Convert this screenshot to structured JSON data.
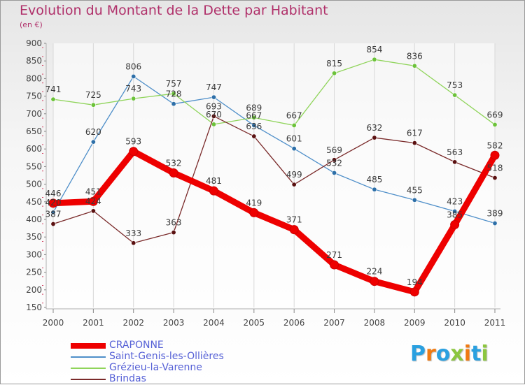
{
  "title": "Evolution du Montant de la Dette par Habitant",
  "subtitle": "(en €)",
  "logo": {
    "text": "Proxiti",
    "colors": [
      "#2aa0e0",
      "#f07a12",
      "#2aa0e0",
      "#8cc63f",
      "#f07a12",
      "#2aa0e0",
      "#8cc63f"
    ]
  },
  "chart_data": {
    "type": "line",
    "title": "Evolution du Montant de la Dette par Habitant",
    "subtitle": "(en €)",
    "xlabel": "",
    "ylabel": "",
    "ylim": [
      150,
      900
    ],
    "y_ticks": [
      150,
      200,
      250,
      300,
      350,
      400,
      450,
      500,
      550,
      600,
      650,
      700,
      750,
      800,
      850,
      900
    ],
    "grid": "vertical",
    "legend_position": "bottom-left",
    "x": [
      "2000",
      "2001",
      "2002",
      "2003",
      "2004",
      "2005",
      "2006",
      "2007",
      "2008",
      "2009",
      "2010",
      "2011"
    ],
    "series": [
      {
        "name": "Saint-Genis-les-Ollières",
        "color": "#4f8fc9",
        "marker": "#2d6fa8",
        "values": [
          420,
          620,
          806,
          728,
          747,
          667,
          601,
          532,
          485,
          455,
          423,
          389
        ],
        "labels": [
          "420",
          "620",
          "806",
          "728",
          "747",
          "667",
          "601",
          "532",
          "485",
          "455",
          "423",
          "389"
        ]
      },
      {
        "name": "Grézieu-la-Varenne",
        "color": "#8fd45a",
        "marker": "#6cc23a",
        "values": [
          741,
          725,
          743,
          757,
          670,
          689,
          667,
          815,
          854,
          836,
          753,
          669
        ],
        "labels": [
          "741",
          "725",
          "743",
          "757",
          "670",
          "689",
          "667",
          "815",
          "854",
          "836",
          "753",
          "669"
        ]
      },
      {
        "name": "Brindas",
        "color": "#7a2a2a",
        "marker": "#5a1010",
        "values": [
          387,
          424,
          333,
          363,
          693,
          636,
          499,
          569,
          632,
          617,
          563,
          518
        ],
        "labels": [
          "387",
          "424",
          "333",
          "363",
          "693",
          "636",
          "499",
          "569",
          "632",
          "617",
          "563",
          "518"
        ]
      },
      {
        "name": "CRAPONNE",
        "color": "#ee0000",
        "marker": "#ee0000",
        "values": [
          446,
          451,
          593,
          532,
          481,
          419,
          371,
          271,
          224,
          194,
          385,
          582
        ],
        "labels": [
          "446",
          "451",
          "593",
          "532",
          "481",
          "419",
          "371",
          "271",
          "224",
          "194",
          "385",
          "582"
        ]
      }
    ],
    "legend": [
      {
        "name": "CRAPONNE",
        "color": "#ee0000"
      },
      {
        "name": "Saint-Genis-les-Ollières",
        "color": "#4f8fc9"
      },
      {
        "name": "Grézieu-la-Varenne",
        "color": "#8fd45a"
      },
      {
        "name": "Brindas",
        "color": "#7a2a2a"
      }
    ]
  }
}
